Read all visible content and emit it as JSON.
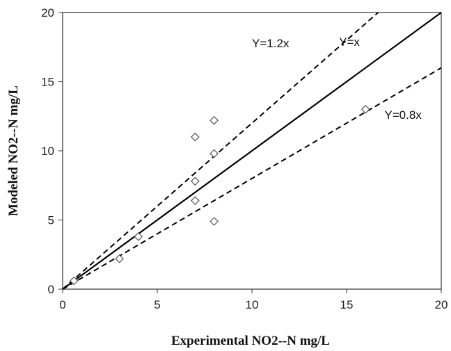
{
  "chart_data": {
    "type": "scatter",
    "xlabel": "Experimental NO2--N  mg/L",
    "ylabel": "Modeled NO2--N  mg/L",
    "xlim": [
      0,
      20
    ],
    "ylim": [
      0,
      20
    ],
    "xticks": [
      0,
      5,
      10,
      15,
      20
    ],
    "yticks": [
      0,
      5,
      10,
      15,
      20
    ],
    "grid": false,
    "series": [
      {
        "marker": "diamond-open",
        "points": [
          {
            "x": 0.6,
            "y": 0.6
          },
          {
            "x": 3.0,
            "y": 2.2
          },
          {
            "x": 4.0,
            "y": 3.8
          },
          {
            "x": 7.0,
            "y": 11.0
          },
          {
            "x": 7.0,
            "y": 7.8
          },
          {
            "x": 7.0,
            "y": 6.4
          },
          {
            "x": 8.0,
            "y": 12.2
          },
          {
            "x": 8.0,
            "y": 9.8
          },
          {
            "x": 8.0,
            "y": 4.9
          },
          {
            "x": 16.0,
            "y": 13.0
          }
        ]
      }
    ],
    "reference_lines": [
      {
        "label": "Y=x",
        "slope": 1.0,
        "style": "solid"
      },
      {
        "label": "Y=1.2x",
        "slope": 1.2,
        "style": "dashed"
      },
      {
        "label": "Y=0.8x",
        "slope": 0.8,
        "style": "dashed"
      }
    ]
  }
}
